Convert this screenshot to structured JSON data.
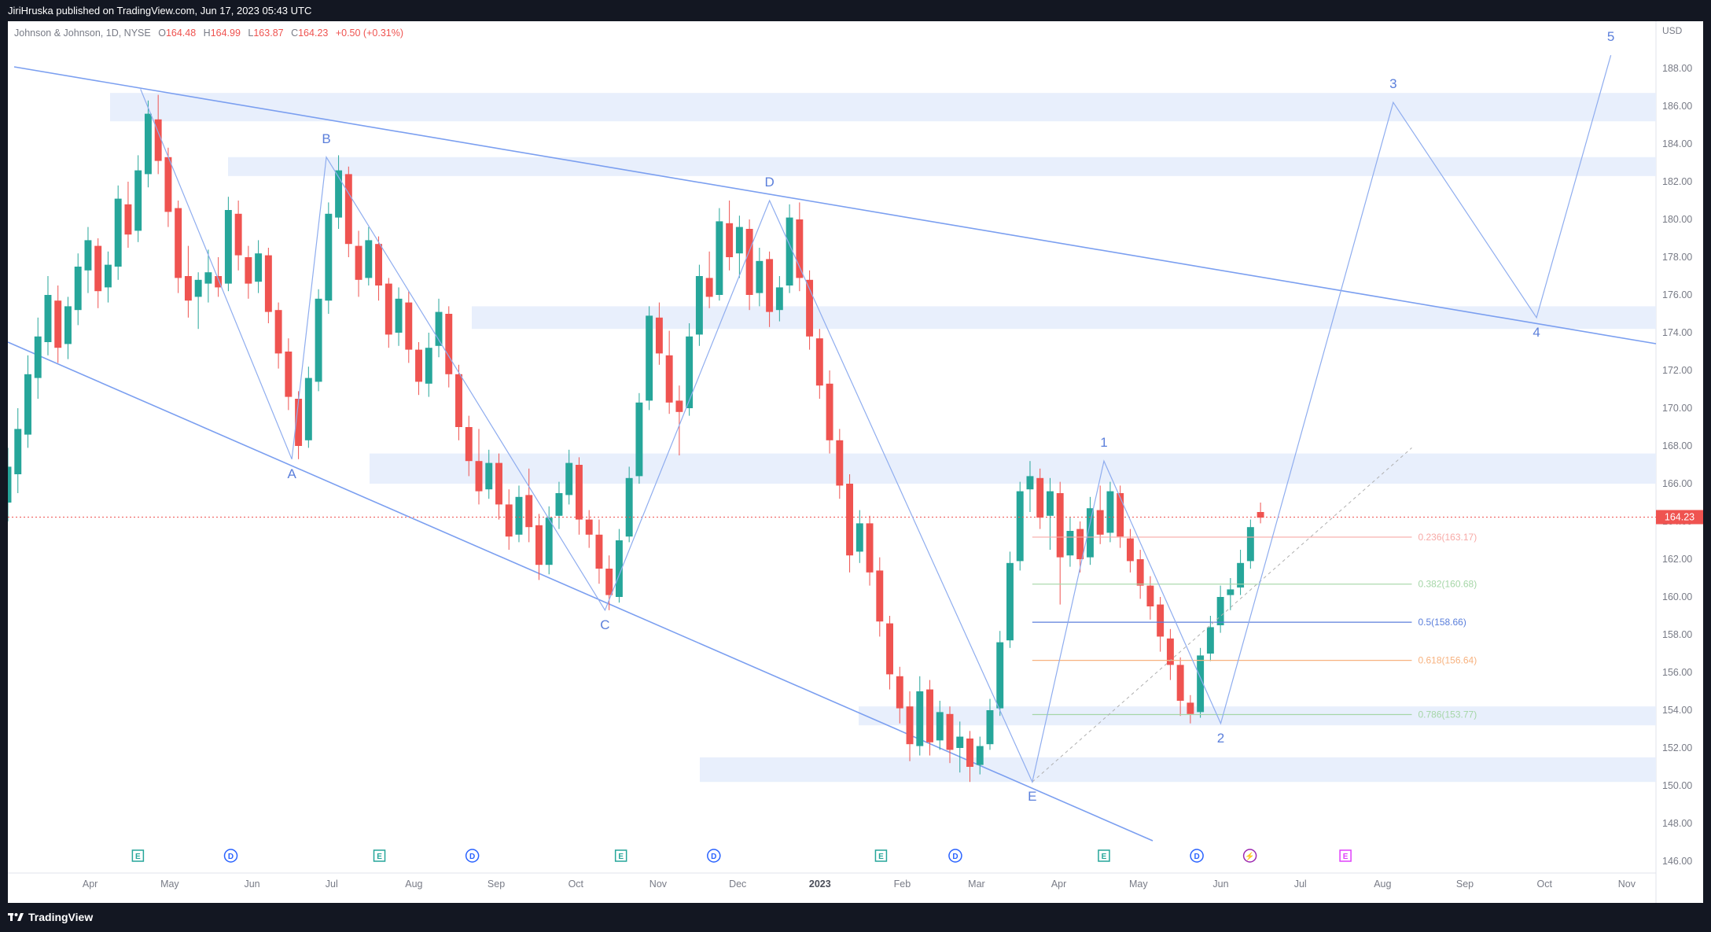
{
  "header": {
    "published_text": "JiriHruska published on TradingView.com, Jun 17, 2023 05:43 UTC"
  },
  "legend": {
    "symbol": "Johnson & Johnson, 1D, NYSE",
    "o_label": "O",
    "o_value": "164.48",
    "h_label": "H",
    "h_value": "164.99",
    "l_label": "L",
    "l_value": "163.87",
    "c_label": "C",
    "c_value": "164.23",
    "change": "+0.50 (+0.31%)"
  },
  "footer": {
    "brand": "TradingView"
  },
  "colors": {
    "up": "#26a69a",
    "down": "#ef5350",
    "wave": "#5b7fdb",
    "zone": "#e8effc",
    "price_line": "#ef5350"
  },
  "chart_data": {
    "type": "candlestick",
    "title": "Johnson & Johnson, 1D, NYSE",
    "currency_label": "USD",
    "y_range": [
      145.5,
      190.5
    ],
    "y_ticks": [
      "188.00",
      "186.00",
      "184.00",
      "182.00",
      "180.00",
      "178.00",
      "176.00",
      "174.00",
      "172.00",
      "170.00",
      "168.00",
      "166.00",
      "164.00",
      "162.00",
      "160.00",
      "158.00",
      "156.00",
      "154.00",
      "152.00",
      "150.00",
      "148.00",
      "146.00"
    ],
    "x_ticks": [
      "Apr",
      "May",
      "Jun",
      "Jul",
      "Aug",
      "Sep",
      "Oct",
      "Nov",
      "Dec",
      "2023",
      "Feb",
      "Mar",
      "Apr",
      "May",
      "Jun",
      "Jul",
      "Aug",
      "Sep",
      "Oct",
      "Nov"
    ],
    "x_range": [
      "2022-03-01",
      "2023-11-12"
    ],
    "last_price": "164.23",
    "wave_labels": [
      {
        "label": "A",
        "date": "2022-06-16",
        "price": 167.3
      },
      {
        "label": "B",
        "date": "2022-06-29",
        "price": 183.3
      },
      {
        "label": "C",
        "date": "2022-10-12",
        "price": 159.3
      },
      {
        "label": "D",
        "date": "2022-12-13",
        "price": 181.0
      },
      {
        "label": "E",
        "date": "2023-03-22",
        "price": 150.2
      },
      {
        "label": "1",
        "date": "2023-04-18",
        "price": 167.2
      },
      {
        "label": "2",
        "date": "2023-06-01",
        "price": 153.3
      },
      {
        "label": "3",
        "date": "2023-08-05",
        "price": 186.2
      },
      {
        "label": "4",
        "date": "2023-09-28",
        "price": 174.8
      },
      {
        "label": "5",
        "date": "2023-10-26",
        "price": 188.7
      }
    ],
    "fib_levels": [
      {
        "label": "0.236(163.17)",
        "price": 163.17,
        "color": "#f7a9a6"
      },
      {
        "label": "0.382(160.68)",
        "price": 160.68,
        "color": "#a5d6a7"
      },
      {
        "label": "0.5(158.66)",
        "price": 158.66,
        "color": "#5b7fdb"
      },
      {
        "label": "0.618(156.64)",
        "price": 156.64,
        "color": "#f7b27f"
      },
      {
        "label": "0.786(153.77)",
        "price": 153.77,
        "color": "#a5d6a7"
      }
    ],
    "zones": [
      {
        "from": 185.2,
        "to": 186.7
      },
      {
        "from": 182.3,
        "to": 183.3
      },
      {
        "from": 174.2,
        "to": 175.4
      },
      {
        "from": 166.0,
        "to": 167.6
      },
      {
        "from": 153.2,
        "to": 154.2
      },
      {
        "from": 150.2,
        "to": 151.5
      }
    ],
    "events": [
      "E",
      "D",
      "E",
      "D",
      "E",
      "D",
      "E",
      "D",
      "E",
      "D",
      "⚡",
      "E"
    ],
    "ohlc": [
      [
        165.0,
        167.9,
        164.0,
        166.9
      ],
      [
        166.5,
        170.0,
        165.5,
        168.9
      ],
      [
        168.6,
        172.8,
        167.9,
        171.8
      ],
      [
        171.6,
        174.8,
        170.5,
        173.8
      ],
      [
        173.5,
        177.0,
        172.8,
        176.0
      ],
      [
        175.7,
        176.5,
        172.4,
        173.2
      ],
      [
        173.4,
        175.9,
        172.6,
        175.4
      ],
      [
        175.2,
        178.2,
        174.4,
        177.5
      ],
      [
        177.3,
        179.6,
        176.1,
        178.9
      ],
      [
        178.6,
        179.0,
        175.3,
        176.2
      ],
      [
        176.4,
        178.3,
        175.6,
        177.6
      ],
      [
        177.5,
        181.8,
        176.8,
        181.1
      ],
      [
        180.8,
        182.0,
        178.5,
        179.2
      ],
      [
        179.4,
        183.4,
        178.8,
        182.6
      ],
      [
        182.4,
        186.3,
        181.7,
        185.6
      ],
      [
        185.3,
        186.6,
        182.4,
        183.1
      ],
      [
        183.3,
        183.8,
        179.6,
        180.4
      ],
      [
        180.6,
        181.0,
        176.1,
        176.9
      ],
      [
        177.0,
        178.6,
        174.8,
        175.7
      ],
      [
        175.9,
        177.2,
        174.2,
        176.8
      ],
      [
        176.6,
        178.4,
        175.6,
        177.2
      ],
      [
        177.0,
        178.0,
        175.9,
        176.4
      ],
      [
        176.6,
        181.2,
        176.2,
        180.5
      ],
      [
        180.3,
        181.0,
        177.3,
        178.1
      ],
      [
        178.0,
        178.6,
        175.8,
        176.6
      ],
      [
        176.7,
        178.9,
        176.1,
        178.2
      ],
      [
        178.1,
        178.5,
        174.5,
        175.1
      ],
      [
        175.2,
        175.6,
        172.1,
        172.9
      ],
      [
        173.0,
        173.7,
        169.9,
        170.6
      ],
      [
        170.5,
        170.9,
        167.3,
        168.0
      ],
      [
        168.3,
        172.2,
        167.9,
        171.6
      ],
      [
        171.4,
        176.3,
        170.9,
        175.8
      ],
      [
        175.7,
        180.9,
        175.0,
        180.3
      ],
      [
        180.1,
        183.4,
        179.5,
        182.6
      ],
      [
        182.4,
        182.8,
        178.0,
        178.7
      ],
      [
        178.6,
        179.4,
        175.9,
        176.8
      ],
      [
        176.9,
        179.6,
        176.5,
        178.9
      ],
      [
        178.7,
        179.1,
        175.7,
        176.5
      ],
      [
        176.6,
        176.9,
        173.2,
        173.9
      ],
      [
        174.0,
        176.4,
        173.3,
        175.8
      ],
      [
        175.6,
        176.2,
        172.4,
        173.1
      ],
      [
        173.1,
        173.5,
        170.7,
        171.4
      ],
      [
        171.3,
        174.0,
        170.6,
        173.2
      ],
      [
        173.3,
        175.8,
        172.7,
        175.1
      ],
      [
        175.0,
        175.4,
        171.1,
        171.8
      ],
      [
        171.8,
        172.3,
        168.3,
        169.0
      ],
      [
        169.0,
        169.6,
        166.4,
        167.2
      ],
      [
        167.2,
        168.9,
        164.9,
        165.6
      ],
      [
        165.7,
        167.8,
        165.2,
        167.1
      ],
      [
        167.1,
        167.6,
        164.1,
        164.9
      ],
      [
        164.9,
        165.7,
        162.5,
        163.2
      ],
      [
        163.3,
        165.9,
        162.9,
        165.3
      ],
      [
        165.4,
        166.8,
        162.9,
        163.7
      ],
      [
        163.8,
        164.4,
        160.9,
        161.7
      ],
      [
        161.7,
        164.8,
        161.2,
        164.2
      ],
      [
        164.3,
        166.1,
        163.6,
        165.5
      ],
      [
        165.4,
        167.8,
        164.9,
        167.1
      ],
      [
        167.0,
        167.4,
        163.3,
        164.1
      ],
      [
        164.1,
        164.6,
        162.6,
        163.3
      ],
      [
        163.3,
        164.1,
        160.7,
        161.5
      ],
      [
        161.5,
        162.2,
        159.3,
        160.1
      ],
      [
        160.0,
        163.6,
        159.7,
        163.0
      ],
      [
        163.2,
        166.9,
        162.9,
        166.3
      ],
      [
        166.4,
        170.8,
        166.0,
        170.3
      ],
      [
        170.4,
        175.4,
        169.9,
        174.9
      ],
      [
        174.8,
        175.6,
        172.3,
        172.9
      ],
      [
        172.8,
        174.1,
        169.7,
        170.3
      ],
      [
        170.4,
        171.2,
        167.5,
        169.8
      ],
      [
        170.0,
        174.5,
        169.6,
        173.8
      ],
      [
        173.9,
        177.6,
        173.3,
        177.0
      ],
      [
        176.9,
        178.3,
        175.3,
        175.9
      ],
      [
        176.0,
        180.6,
        175.7,
        179.9
      ],
      [
        179.8,
        181.0,
        177.3,
        178.0
      ],
      [
        178.2,
        180.2,
        176.9,
        179.6
      ],
      [
        179.5,
        180.0,
        175.2,
        176.0
      ],
      [
        176.1,
        178.5,
        175.4,
        177.8
      ],
      [
        177.9,
        178.3,
        174.3,
        175.1
      ],
      [
        175.2,
        177.0,
        174.6,
        176.4
      ],
      [
        176.5,
        180.8,
        176.1,
        180.1
      ],
      [
        180.0,
        180.9,
        176.2,
        176.9
      ],
      [
        176.8,
        177.3,
        173.1,
        173.8
      ],
      [
        173.7,
        174.2,
        170.5,
        171.2
      ],
      [
        171.3,
        172.0,
        167.6,
        168.3
      ],
      [
        168.3,
        168.9,
        165.2,
        165.9
      ],
      [
        166.0,
        166.5,
        161.3,
        162.2
      ],
      [
        162.4,
        164.6,
        161.8,
        163.9
      ],
      [
        163.9,
        164.3,
        160.6,
        161.3
      ],
      [
        161.4,
        162.1,
        157.9,
        158.7
      ],
      [
        158.6,
        159.0,
        155.1,
        155.9
      ],
      [
        155.8,
        156.3,
        153.3,
        154.1
      ],
      [
        154.2,
        155.0,
        151.3,
        152.2
      ],
      [
        152.1,
        155.8,
        151.6,
        155.0
      ],
      [
        155.1,
        155.6,
        151.6,
        152.3
      ],
      [
        152.4,
        154.5,
        151.9,
        153.9
      ],
      [
        153.8,
        154.2,
        151.2,
        151.9
      ],
      [
        152.0,
        153.4,
        150.7,
        152.6
      ],
      [
        152.5,
        152.9,
        150.2,
        151.0
      ],
      [
        151.1,
        152.6,
        150.6,
        152.1
      ],
      [
        152.2,
        154.6,
        151.9,
        154.0
      ],
      [
        154.1,
        158.2,
        153.7,
        157.6
      ],
      [
        157.7,
        162.4,
        157.3,
        161.8
      ],
      [
        161.9,
        166.1,
        161.4,
        165.6
      ],
      [
        165.7,
        167.2,
        164.5,
        166.4
      ],
      [
        166.3,
        166.8,
        163.6,
        164.2
      ],
      [
        164.3,
        166.3,
        162.5,
        165.6
      ],
      [
        165.5,
        166.1,
        159.6,
        162.1
      ],
      [
        162.2,
        164.2,
        161.6,
        163.5
      ],
      [
        163.6,
        164.0,
        161.3,
        162.0
      ],
      [
        162.1,
        165.3,
        161.7,
        164.7
      ],
      [
        164.6,
        165.9,
        162.8,
        163.3
      ],
      [
        163.4,
        166.1,
        162.9,
        165.6
      ],
      [
        165.5,
        165.9,
        162.6,
        163.2
      ],
      [
        163.1,
        163.6,
        161.3,
        161.9
      ],
      [
        162.0,
        162.5,
        159.9,
        160.6
      ],
      [
        160.6,
        161.1,
        158.8,
        159.5
      ],
      [
        159.6,
        160.0,
        157.1,
        157.9
      ],
      [
        157.8,
        158.3,
        155.6,
        156.4
      ],
      [
        156.4,
        156.8,
        153.7,
        154.5
      ],
      [
        154.4,
        154.8,
        153.3,
        153.8
      ],
      [
        153.9,
        157.3,
        153.6,
        156.9
      ],
      [
        157.0,
        159.0,
        156.6,
        158.4
      ],
      [
        158.5,
        160.6,
        158.1,
        160.0
      ],
      [
        160.1,
        161.0,
        159.3,
        160.4
      ],
      [
        160.5,
        162.5,
        160.1,
        161.8
      ],
      [
        161.9,
        164.1,
        161.5,
        163.7
      ],
      [
        164.5,
        165.0,
        163.9,
        164.2
      ]
    ]
  }
}
